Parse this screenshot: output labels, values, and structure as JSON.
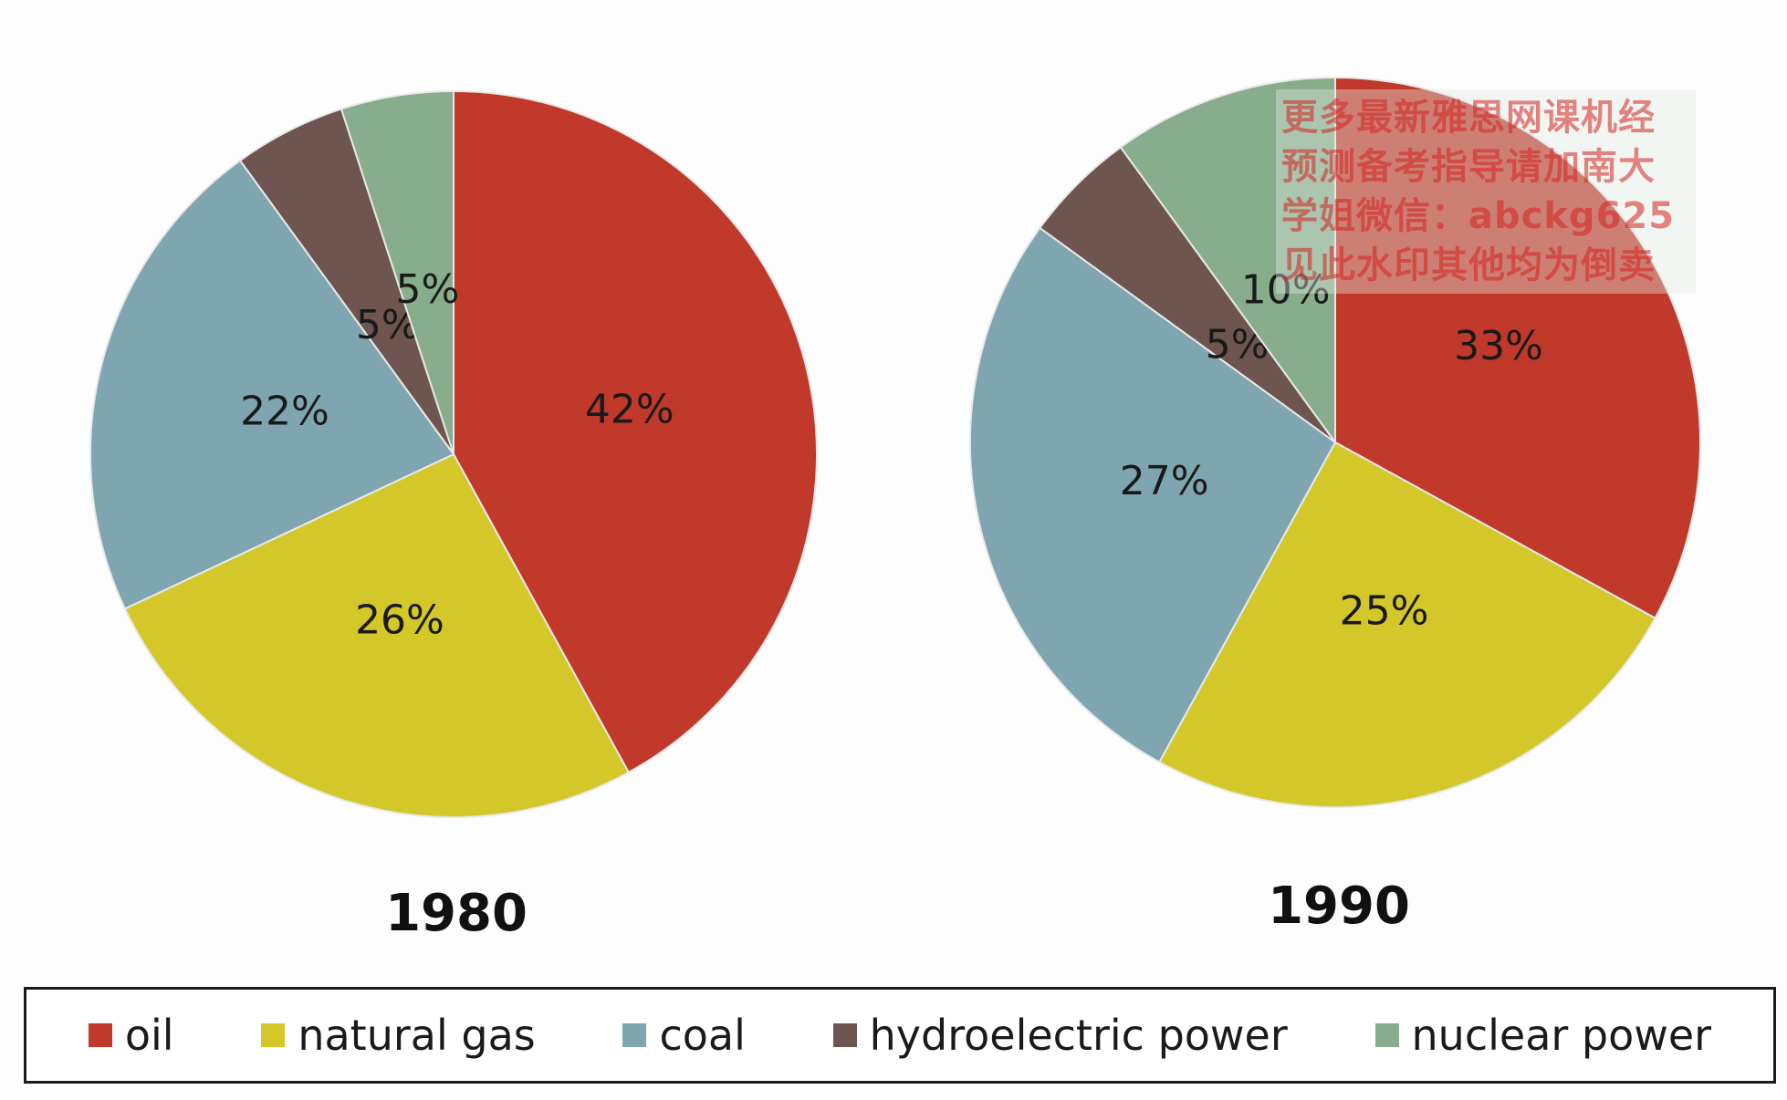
{
  "chart_data": [
    {
      "type": "pie",
      "title": "1980",
      "categories": [
        "oil",
        "natural gas",
        "coal",
        "hydroelectric power",
        "nuclear power"
      ],
      "values": [
        42,
        26,
        22,
        5,
        5
      ],
      "labels": [
        "42%",
        "26%",
        "22%",
        "5%",
        "5%"
      ]
    },
    {
      "type": "pie",
      "title": "1990",
      "categories": [
        "oil",
        "natural gas",
        "coal",
        "hydroelectric power",
        "nuclear power"
      ],
      "values": [
        33,
        25,
        27,
        5,
        10
      ],
      "labels": [
        "33%",
        "25%",
        "27%",
        "5%",
        "10%"
      ]
    }
  ],
  "legend": {
    "placement": "bottom",
    "items": [
      {
        "label": "oil",
        "color": "#c0392b"
      },
      {
        "label": "natural gas",
        "color": "#d4c72a"
      },
      {
        "label": "coal",
        "color": "#7fa6b0"
      },
      {
        "label": "hydroelectric power",
        "color": "#6e5550"
      },
      {
        "label": "nuclear power",
        "color": "#87ad8c"
      }
    ]
  },
  "watermark": {
    "lines": [
      "更多最新雅思网课机经",
      "预测备考指导请加南大",
      "学姐微信：abckg625",
      "见此水印其他均为倒卖"
    ]
  }
}
